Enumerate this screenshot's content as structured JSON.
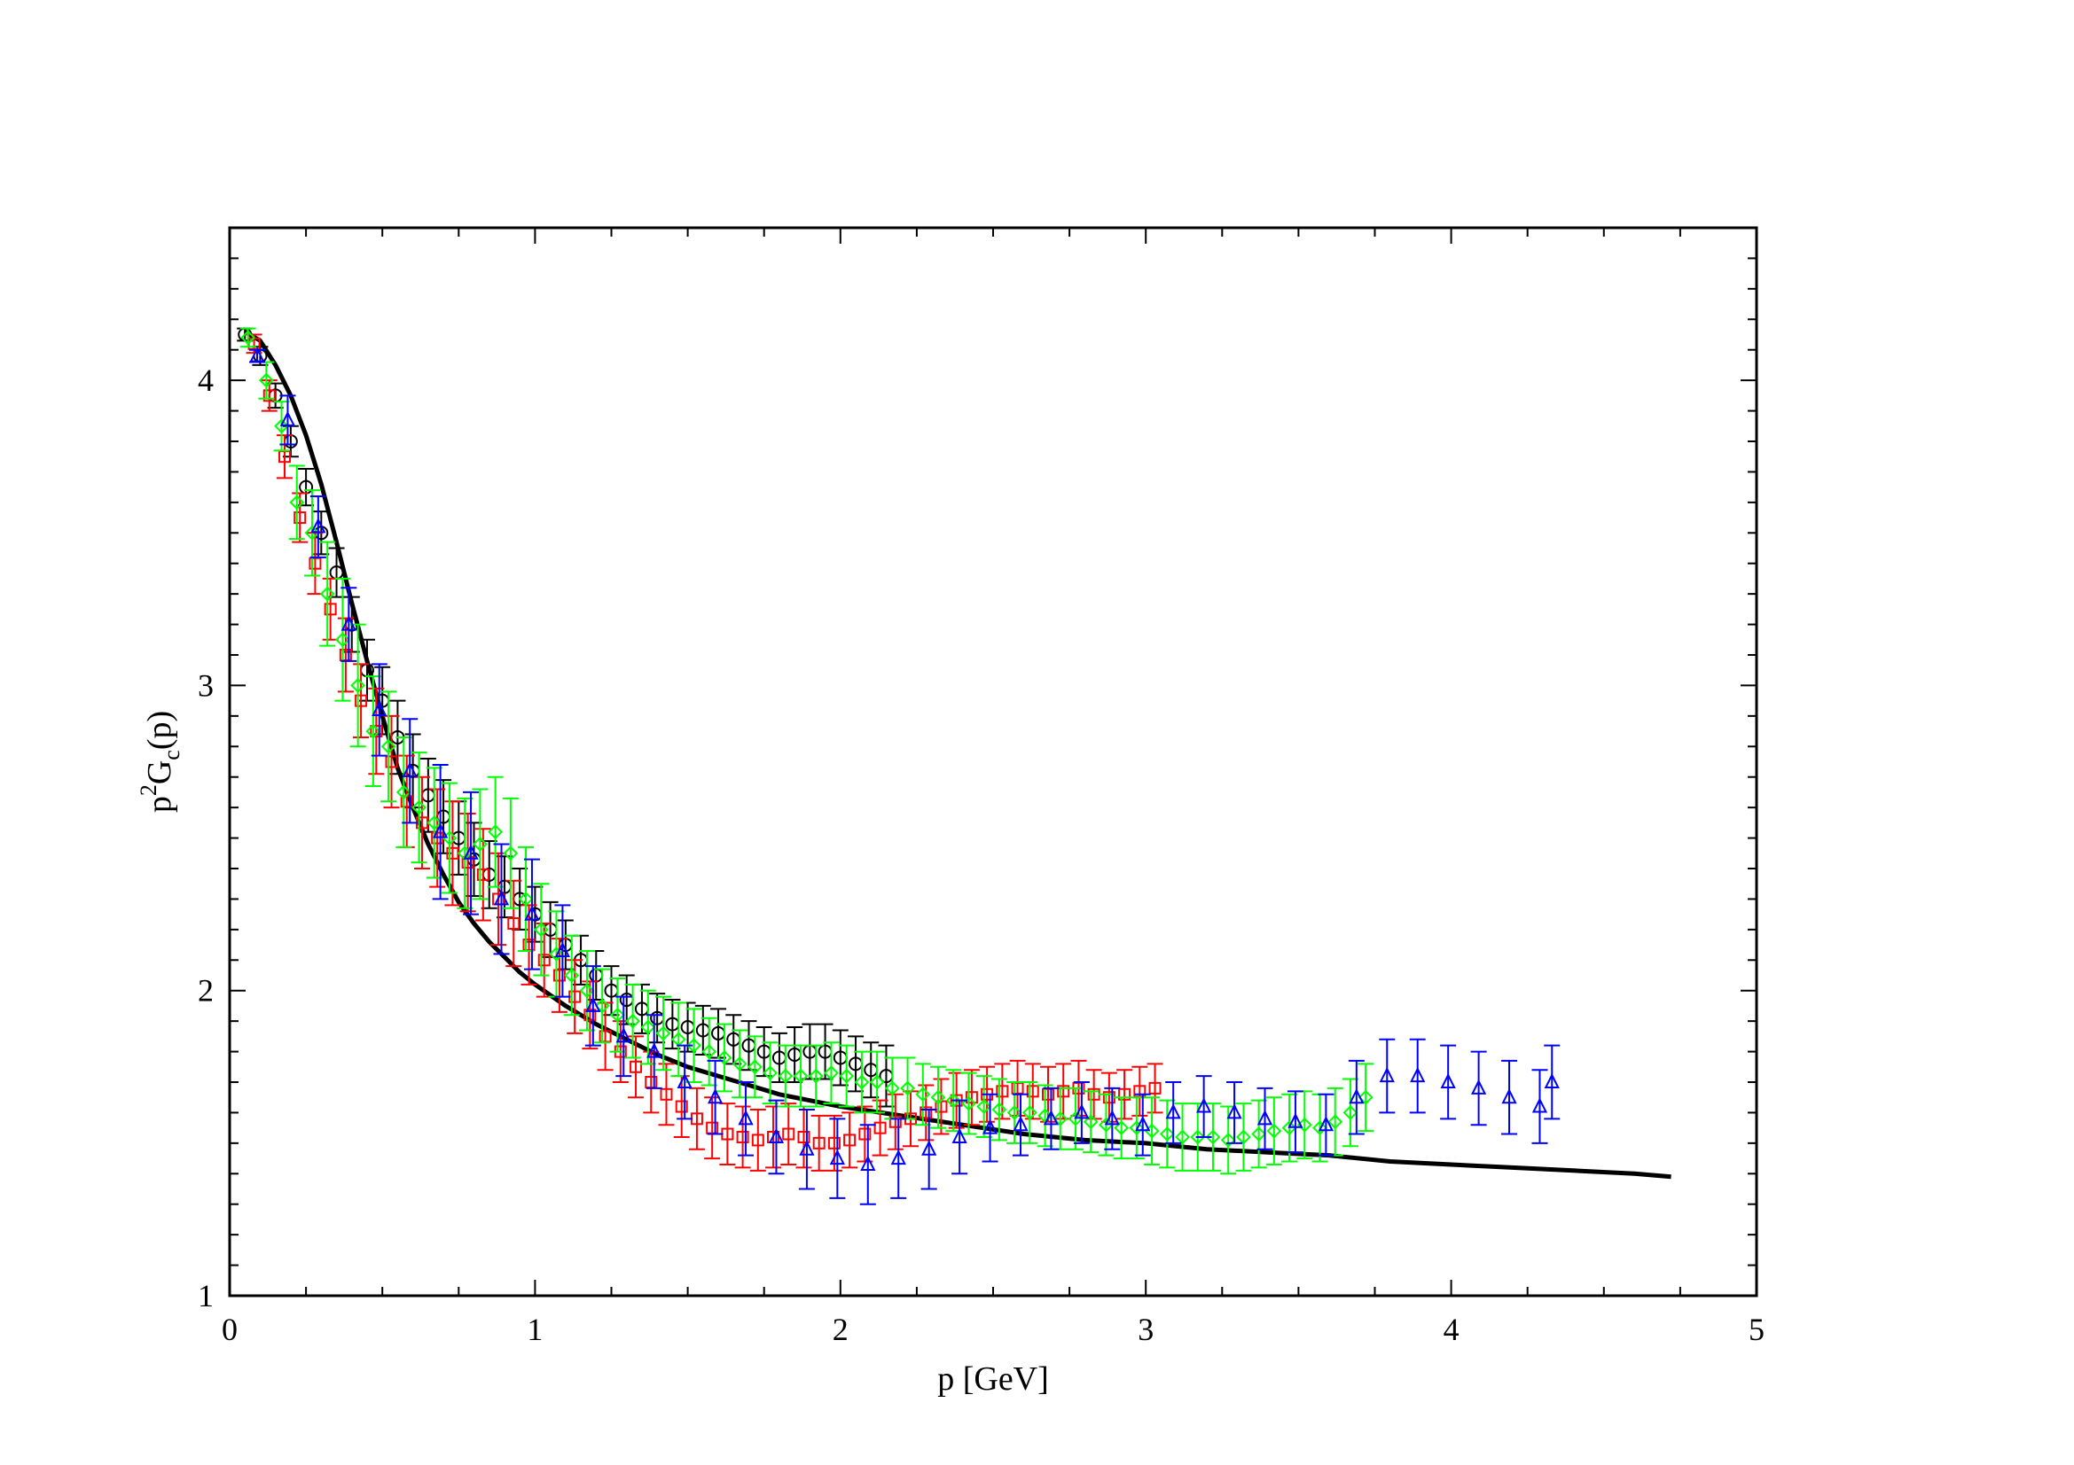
{
  "chart_data": {
    "type": "scatter",
    "xlabel": "p [GeV]",
    "ylabel": {
      "base": "p",
      "sup": "2",
      "mid": "G",
      "sub": "c",
      "tail": "(p)"
    },
    "xlim": [
      0,
      5
    ],
    "ylim": [
      1,
      4.5
    ],
    "x_ticks": [
      "0",
      "1",
      "2",
      "3",
      "4",
      "5"
    ],
    "y_ticks": [
      "1",
      "2",
      "3",
      "4"
    ],
    "grid": false,
    "series": [
      {
        "marker": "circle",
        "color": "#000000",
        "x": [
          0.05,
          0.1,
          0.15,
          0.2,
          0.25,
          0.3,
          0.35,
          0.4,
          0.45,
          0.5,
          0.55,
          0.6,
          0.65,
          0.7,
          0.75,
          0.8,
          0.85,
          0.9,
          0.95,
          1.0,
          1.05,
          1.1,
          1.15,
          1.2,
          1.25,
          1.3,
          1.35,
          1.4,
          1.45,
          1.5,
          1.55,
          1.6,
          1.65,
          1.7,
          1.75,
          1.8,
          1.85,
          1.9,
          1.95,
          2.0,
          2.05,
          2.1,
          2.15
        ],
        "y": [
          4.15,
          4.08,
          3.95,
          3.8,
          3.65,
          3.5,
          3.37,
          3.2,
          3.05,
          2.95,
          2.83,
          2.72,
          2.64,
          2.57,
          2.5,
          2.43,
          2.38,
          2.34,
          2.3,
          2.25,
          2.2,
          2.15,
          2.1,
          2.05,
          2.0,
          1.97,
          1.94,
          1.91,
          1.89,
          1.88,
          1.87,
          1.86,
          1.84,
          1.82,
          1.8,
          1.78,
          1.79,
          1.8,
          1.8,
          1.78,
          1.76,
          1.74,
          1.72
        ],
        "err": [
          0.02,
          0.03,
          0.04,
          0.05,
          0.06,
          0.07,
          0.08,
          0.09,
          0.1,
          0.11,
          0.12,
          0.12,
          0.12,
          0.12,
          0.12,
          0.12,
          0.11,
          0.1,
          0.1,
          0.09,
          0.09,
          0.08,
          0.08,
          0.08,
          0.08,
          0.08,
          0.08,
          0.08,
          0.08,
          0.08,
          0.08,
          0.08,
          0.08,
          0.08,
          0.08,
          0.08,
          0.09,
          0.09,
          0.09,
          0.09,
          0.09,
          0.09,
          0.1
        ]
      },
      {
        "marker": "square",
        "color": "#ff0000",
        "x": [
          0.08,
          0.13,
          0.18,
          0.23,
          0.28,
          0.33,
          0.38,
          0.43,
          0.48,
          0.53,
          0.58,
          0.63,
          0.68,
          0.73,
          0.78,
          0.83,
          0.88,
          0.93,
          0.98,
          1.03,
          1.08,
          1.13,
          1.18,
          1.23,
          1.28,
          1.33,
          1.38,
          1.43,
          1.48,
          1.53,
          1.58,
          1.63,
          1.68,
          1.73,
          1.78,
          1.83,
          1.88,
          1.93,
          1.98,
          2.03,
          2.08,
          2.13,
          2.18,
          2.23,
          2.28,
          2.33,
          2.38,
          2.43,
          2.48,
          2.53,
          2.58,
          2.63,
          2.68,
          2.73,
          2.78,
          2.83,
          2.88,
          2.93,
          2.98,
          3.03
        ],
        "y": [
          4.12,
          3.95,
          3.75,
          3.55,
          3.4,
          3.25,
          3.1,
          2.95,
          2.85,
          2.75,
          2.62,
          2.55,
          2.5,
          2.45,
          2.42,
          2.38,
          2.3,
          2.22,
          2.15,
          2.1,
          2.05,
          1.98,
          1.92,
          1.85,
          1.8,
          1.75,
          1.7,
          1.66,
          1.62,
          1.58,
          1.55,
          1.53,
          1.52,
          1.51,
          1.52,
          1.53,
          1.52,
          1.5,
          1.5,
          1.51,
          1.53,
          1.55,
          1.57,
          1.58,
          1.6,
          1.62,
          1.64,
          1.65,
          1.66,
          1.67,
          1.68,
          1.67,
          1.66,
          1.67,
          1.68,
          1.66,
          1.65,
          1.66,
          1.67,
          1.68
        ],
        "err": [
          0.03,
          0.05,
          0.07,
          0.08,
          0.1,
          0.1,
          0.12,
          0.12,
          0.14,
          0.15,
          0.15,
          0.15,
          0.16,
          0.17,
          0.16,
          0.15,
          0.15,
          0.14,
          0.13,
          0.12,
          0.12,
          0.12,
          0.11,
          0.11,
          0.1,
          0.1,
          0.1,
          0.1,
          0.1,
          0.1,
          0.1,
          0.1,
          0.1,
          0.1,
          0.1,
          0.1,
          0.1,
          0.09,
          0.09,
          0.09,
          0.09,
          0.09,
          0.09,
          0.09,
          0.09,
          0.09,
          0.09,
          0.09,
          0.09,
          0.09,
          0.09,
          0.09,
          0.09,
          0.09,
          0.09,
          0.08,
          0.08,
          0.08,
          0.08,
          0.08
        ]
      },
      {
        "marker": "diamond",
        "color": "#00ff00",
        "x": [
          0.06,
          0.12,
          0.17,
          0.22,
          0.27,
          0.32,
          0.37,
          0.42,
          0.47,
          0.52,
          0.57,
          0.62,
          0.67,
          0.72,
          0.77,
          0.82,
          0.87,
          0.92,
          0.97,
          1.02,
          1.07,
          1.12,
          1.17,
          1.22,
          1.27,
          1.32,
          1.37,
          1.42,
          1.47,
          1.52,
          1.57,
          1.62,
          1.67,
          1.72,
          1.77,
          1.82,
          1.87,
          1.92,
          1.97,
          2.02,
          2.07,
          2.12,
          2.17,
          2.22,
          2.27,
          2.32,
          2.37,
          2.42,
          2.47,
          2.52,
          2.57,
          2.62,
          2.67,
          2.72,
          2.77,
          2.82,
          2.87,
          2.92,
          2.97,
          3.02,
          3.07,
          3.12,
          3.17,
          3.22,
          3.27,
          3.32,
          3.37,
          3.42,
          3.47,
          3.52,
          3.57,
          3.62,
          3.67,
          3.72
        ],
        "y": [
          4.14,
          4.0,
          3.85,
          3.6,
          3.5,
          3.3,
          3.15,
          3.0,
          2.85,
          2.8,
          2.65,
          2.6,
          2.55,
          2.5,
          2.45,
          2.48,
          2.52,
          2.45,
          2.3,
          2.2,
          2.12,
          2.05,
          2.0,
          1.95,
          1.92,
          1.9,
          1.88,
          1.86,
          1.84,
          1.82,
          1.8,
          1.78,
          1.76,
          1.75,
          1.73,
          1.72,
          1.72,
          1.72,
          1.73,
          1.72,
          1.7,
          1.7,
          1.68,
          1.68,
          1.66,
          1.65,
          1.64,
          1.63,
          1.62,
          1.61,
          1.6,
          1.6,
          1.59,
          1.58,
          1.58,
          1.57,
          1.56,
          1.55,
          1.55,
          1.54,
          1.53,
          1.52,
          1.52,
          1.52,
          1.51,
          1.52,
          1.53,
          1.54,
          1.55,
          1.56,
          1.55,
          1.57,
          1.6,
          1.65
        ],
        "err": [
          0.03,
          0.06,
          0.08,
          0.12,
          0.14,
          0.17,
          0.2,
          0.2,
          0.18,
          0.18,
          0.18,
          0.18,
          0.18,
          0.18,
          0.18,
          0.18,
          0.18,
          0.18,
          0.17,
          0.15,
          0.14,
          0.13,
          0.13,
          0.12,
          0.12,
          0.12,
          0.12,
          0.12,
          0.12,
          0.12,
          0.11,
          0.11,
          0.11,
          0.1,
          0.1,
          0.1,
          0.1,
          0.1,
          0.1,
          0.1,
          0.1,
          0.1,
          0.1,
          0.1,
          0.1,
          0.1,
          0.1,
          0.1,
          0.1,
          0.1,
          0.1,
          0.1,
          0.1,
          0.1,
          0.1,
          0.1,
          0.1,
          0.1,
          0.1,
          0.11,
          0.11,
          0.11,
          0.11,
          0.11,
          0.11,
          0.11,
          0.11,
          0.11,
          0.11,
          0.11,
          0.11,
          0.11,
          0.11,
          0.11
        ]
      },
      {
        "marker": "triangle",
        "color": "#0000ff",
        "x": [
          0.09,
          0.19,
          0.29,
          0.39,
          0.49,
          0.59,
          0.69,
          0.79,
          0.89,
          0.99,
          1.09,
          1.19,
          1.29,
          1.39,
          1.49,
          1.59,
          1.69,
          1.79,
          1.89,
          1.99,
          2.09,
          2.19,
          2.29,
          2.39,
          2.49,
          2.59,
          2.69,
          2.79,
          2.89,
          2.99,
          3.09,
          3.19,
          3.29,
          3.39,
          3.49,
          3.59,
          3.69,
          3.79,
          3.89,
          3.99,
          4.09,
          4.19,
          4.29,
          4.33
        ],
        "y": [
          4.08,
          3.87,
          3.52,
          3.2,
          2.92,
          2.72,
          2.52,
          2.45,
          2.3,
          2.25,
          2.13,
          1.95,
          1.85,
          1.8,
          1.7,
          1.65,
          1.58,
          1.52,
          1.48,
          1.45,
          1.43,
          1.45,
          1.48,
          1.52,
          1.55,
          1.56,
          1.58,
          1.6,
          1.58,
          1.56,
          1.6,
          1.62,
          1.6,
          1.58,
          1.57,
          1.56,
          1.65,
          1.72,
          1.72,
          1.7,
          1.68,
          1.65,
          1.62,
          1.7
        ],
        "err": [
          0.02,
          0.08,
          0.1,
          0.12,
          0.15,
          0.17,
          0.22,
          0.2,
          0.18,
          0.18,
          0.15,
          0.13,
          0.13,
          0.12,
          0.12,
          0.12,
          0.12,
          0.12,
          0.13,
          0.13,
          0.13,
          0.13,
          0.13,
          0.12,
          0.11,
          0.1,
          0.1,
          0.1,
          0.1,
          0.1,
          0.1,
          0.1,
          0.1,
          0.1,
          0.1,
          0.1,
          0.12,
          0.12,
          0.12,
          0.12,
          0.12,
          0.12,
          0.12,
          0.12
        ]
      }
    ],
    "fit_curve": {
      "color": "#000000",
      "x": [
        0.05,
        0.1,
        0.15,
        0.2,
        0.25,
        0.3,
        0.35,
        0.4,
        0.45,
        0.5,
        0.55,
        0.6,
        0.65,
        0.7,
        0.75,
        0.8,
        0.85,
        0.9,
        0.95,
        1.0,
        1.1,
        1.2,
        1.3,
        1.4,
        1.5,
        1.6,
        1.7,
        1.8,
        1.9,
        2.0,
        2.2,
        2.4,
        2.6,
        2.8,
        3.0,
        3.2,
        3.4,
        3.6,
        3.8,
        4.0,
        4.2,
        4.4,
        4.6,
        4.72
      ],
      "y": [
        4.16,
        4.13,
        4.05,
        3.95,
        3.82,
        3.66,
        3.47,
        3.27,
        3.08,
        2.9,
        2.73,
        2.6,
        2.48,
        2.38,
        2.29,
        2.22,
        2.16,
        2.11,
        2.06,
        2.02,
        1.95,
        1.89,
        1.84,
        1.79,
        1.75,
        1.72,
        1.69,
        1.66,
        1.64,
        1.62,
        1.59,
        1.56,
        1.53,
        1.51,
        1.5,
        1.48,
        1.47,
        1.46,
        1.44,
        1.43,
        1.42,
        1.41,
        1.4,
        1.39
      ]
    }
  }
}
